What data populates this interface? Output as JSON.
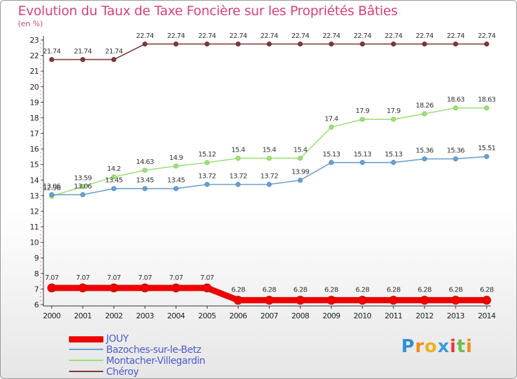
{
  "chart_data": {
    "type": "line",
    "title": "Evolution du Taux de Taxe Foncière sur les Propriétés Bâties",
    "unit_label": "(en %)",
    "x": [
      "2000",
      "2001",
      "2002",
      "2003",
      "2004",
      "2005",
      "2006",
      "2007",
      "2008",
      "2009",
      "2010",
      "2011",
      "2012",
      "2013",
      "2014"
    ],
    "ylim": [
      6,
      23
    ],
    "yticks": [
      "6",
      "7",
      "8",
      "9",
      "10",
      "11",
      "12",
      "13",
      "14",
      "15",
      "16",
      "17",
      "18",
      "19",
      "20",
      "21",
      "22",
      "23"
    ],
    "grid": false,
    "series": [
      {
        "name": "JOUY",
        "color": "#ee0000",
        "values": [
          7.07,
          7.07,
          7.07,
          7.07,
          7.07,
          7.07,
          6.28,
          6.28,
          6.28,
          6.28,
          6.28,
          6.28,
          6.28,
          6.28,
          6.28
        ],
        "labels": [
          "7.07",
          "7.07",
          "7.07",
          "7.07",
          "7.07",
          "7.07",
          "6.28",
          "6.28",
          "6.28",
          "6.28",
          "6.28",
          "6.28",
          "6.28",
          "6.28",
          "6.28"
        ]
      },
      {
        "name": "Bazoches-sur-le-Betz",
        "color": "#6aa0d2",
        "marker": "#4a86c0",
        "values": [
          13.06,
          13.06,
          13.45,
          13.45,
          13.45,
          13.72,
          13.72,
          13.72,
          13.99,
          15.13,
          15.13,
          15.13,
          15.36,
          15.36,
          15.51
        ],
        "labels": [
          "13.06",
          "13.06",
          "13.45",
          "13.45",
          "13.45",
          "13.72",
          "13.72",
          "13.72",
          "13.99",
          "15.13",
          "15.13",
          "15.13",
          "15.36",
          "15.36",
          "15.51"
        ]
      },
      {
        "name": "Montacher-Villegardin",
        "color": "#9ee07a",
        "marker": "#7ccc4a",
        "values": [
          12.96,
          13.59,
          14.2,
          14.63,
          14.9,
          15.12,
          15.4,
          15.4,
          15.4,
          17.4,
          17.9,
          17.9,
          18.26,
          18.63,
          18.63
        ],
        "labels": [
          "12.96",
          "13.59",
          "14.2",
          "14.63",
          "14.9",
          "15.12",
          "15.4",
          "15.4",
          "15.4",
          "17.4",
          "17.9",
          "17.9",
          "18.26",
          "18.63",
          "18.63"
        ]
      },
      {
        "name": "Chéroy",
        "color": "#7a3a3a",
        "marker": "#6a2a2a",
        "values": [
          21.74,
          21.74,
          21.74,
          22.74,
          22.74,
          22.74,
          22.74,
          22.74,
          22.74,
          22.74,
          22.74,
          22.74,
          22.74,
          22.74,
          22.74
        ],
        "labels": [
          "21.74",
          "21.74",
          "21.74",
          "22.74",
          "22.74",
          "22.74",
          "22.74",
          "22.74",
          "22.74",
          "22.74",
          "22.74",
          "22.74",
          "22.74",
          "22.74",
          "22.74"
        ]
      }
    ],
    "legend_position": "bottom-left"
  },
  "legend": [
    {
      "label": "JOUY"
    },
    {
      "label": "Bazoches-sur-le-Betz"
    },
    {
      "label": "Montacher-Villegardin"
    },
    {
      "label": "Chéroy"
    }
  ],
  "logo": {
    "text": "Proxiti",
    "letters": [
      "P",
      "r",
      "o",
      "x",
      "i",
      "t",
      "i"
    ],
    "colors": [
      "#2f8fd8",
      "#f08a1c",
      "#f0b21c",
      "#3a9ad8",
      "#e63a3a",
      "#6ac04a",
      "#f08a1c"
    ]
  }
}
